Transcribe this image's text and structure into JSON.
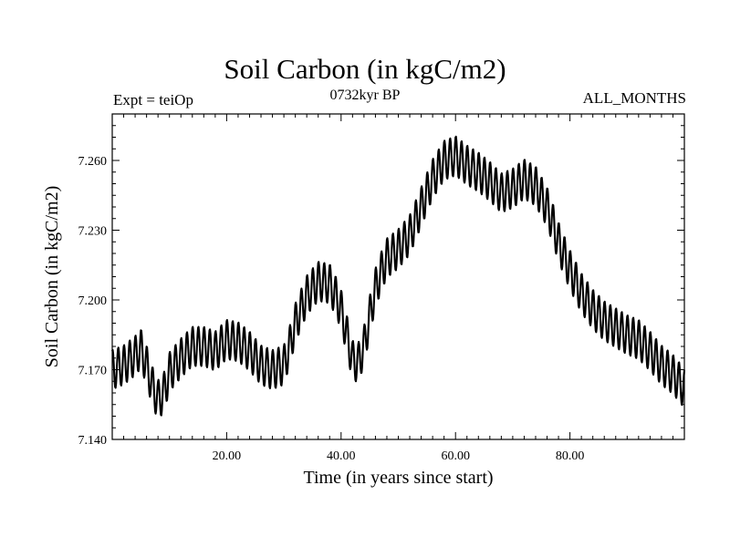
{
  "header": {
    "expt_label": "Expt = teiOp",
    "period_label": "0732kyr BP",
    "months_label": "ALL_MONTHS"
  },
  "chart_data": {
    "type": "line",
    "title": "Soil Carbon (in kgC/m2)",
    "xlabel": "Time (in years since start)",
    "ylabel": "Soil Carbon (in kgC/m2)",
    "xlim": [
      0,
      100
    ],
    "ylim": [
      7.14,
      7.28
    ],
    "x_ticks": [
      20,
      40,
      60,
      80
    ],
    "x_tick_labels": [
      "20.00",
      "40.00",
      "60.00",
      "80.00"
    ],
    "y_ticks": [
      7.14,
      7.17,
      7.2,
      7.23,
      7.26
    ],
    "y_tick_labels": [
      "7.140",
      "7.170",
      "7.200",
      "7.230",
      "7.260"
    ],
    "seasonal_amplitude": 0.0085,
    "samples_per_year": 12,
    "series": [
      {
        "name": "Soil Carbon",
        "color": "#000000",
        "annual_mean_x": [
          0,
          2,
          4,
          5,
          6,
          7,
          8,
          9,
          10,
          12,
          14,
          16,
          18,
          20,
          22,
          24,
          26,
          28,
          30,
          31,
          32,
          34,
          36,
          38,
          39,
          40,
          41,
          42,
          43,
          44,
          45,
          46,
          47,
          48,
          50,
          52,
          54,
          56,
          58,
          60,
          62,
          64,
          66,
          68,
          70,
          72,
          74,
          76,
          77,
          78,
          80,
          82,
          84,
          86,
          88,
          90,
          92,
          94,
          96,
          98,
          100
        ],
        "annual_mean_y": [
          7.17,
          7.172,
          7.176,
          7.179,
          7.172,
          7.163,
          7.157,
          7.16,
          7.169,
          7.175,
          7.18,
          7.18,
          7.178,
          7.183,
          7.182,
          7.178,
          7.172,
          7.17,
          7.172,
          7.18,
          7.19,
          7.202,
          7.208,
          7.207,
          7.202,
          7.196,
          7.185,
          7.174,
          7.173,
          7.18,
          7.193,
          7.205,
          7.212,
          7.218,
          7.222,
          7.228,
          7.24,
          7.252,
          7.26,
          7.262,
          7.258,
          7.255,
          7.251,
          7.246,
          7.248,
          7.252,
          7.249,
          7.24,
          7.233,
          7.225,
          7.213,
          7.203,
          7.196,
          7.191,
          7.188,
          7.185,
          7.183,
          7.178,
          7.172,
          7.168,
          7.162
        ]
      }
    ]
  }
}
